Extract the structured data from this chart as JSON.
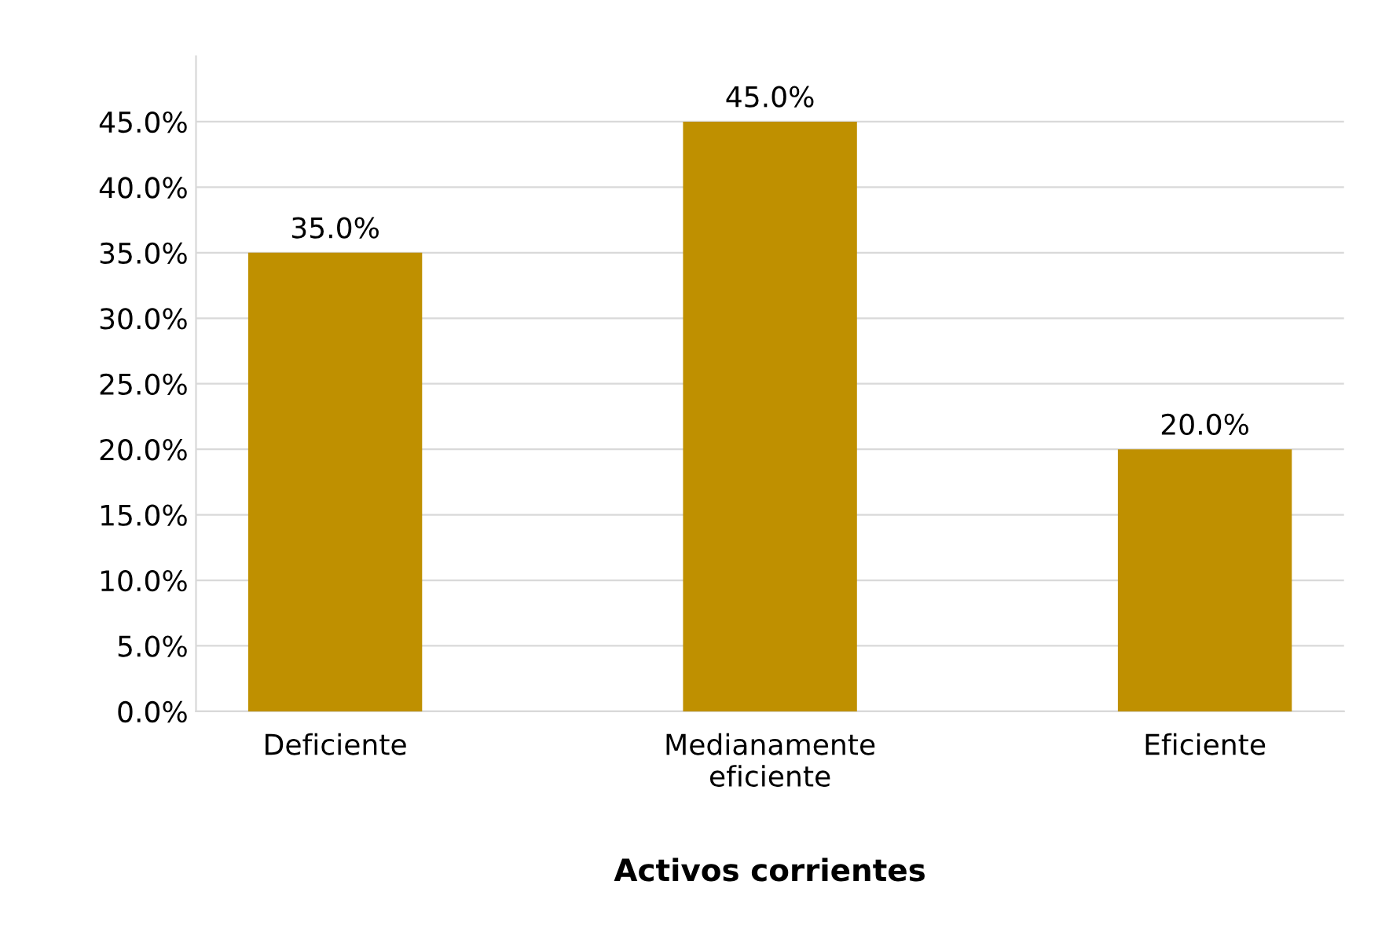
{
  "chart_data": {
    "type": "bar",
    "xlabel": "Activos corrientes",
    "categories": [
      "Deficiente",
      "Medianamente\neficiente",
      "Eficiente"
    ],
    "values": [
      35,
      45,
      20
    ],
    "color": "#bf9000",
    "value_labels": [
      "35.0%",
      "45.0%",
      "20.0%"
    ],
    "ylim": [
      0,
      50
    ],
    "yticks": [
      {
        "value": 0,
        "label": "0.0%"
      },
      {
        "value": 5,
        "label": "5.0%"
      },
      {
        "value": 10,
        "label": "10.0%"
      },
      {
        "value": 15,
        "label": "15.0%"
      },
      {
        "value": 20,
        "label": "20.0%"
      },
      {
        "value": 25,
        "label": "25.0%"
      },
      {
        "value": 30,
        "label": "30.0%"
      },
      {
        "value": 35,
        "label": "35.0%"
      },
      {
        "value": 40,
        "label": "40.0%"
      },
      {
        "value": 45,
        "label": "45.0%"
      }
    ],
    "grid": "y",
    "legend": false
  }
}
